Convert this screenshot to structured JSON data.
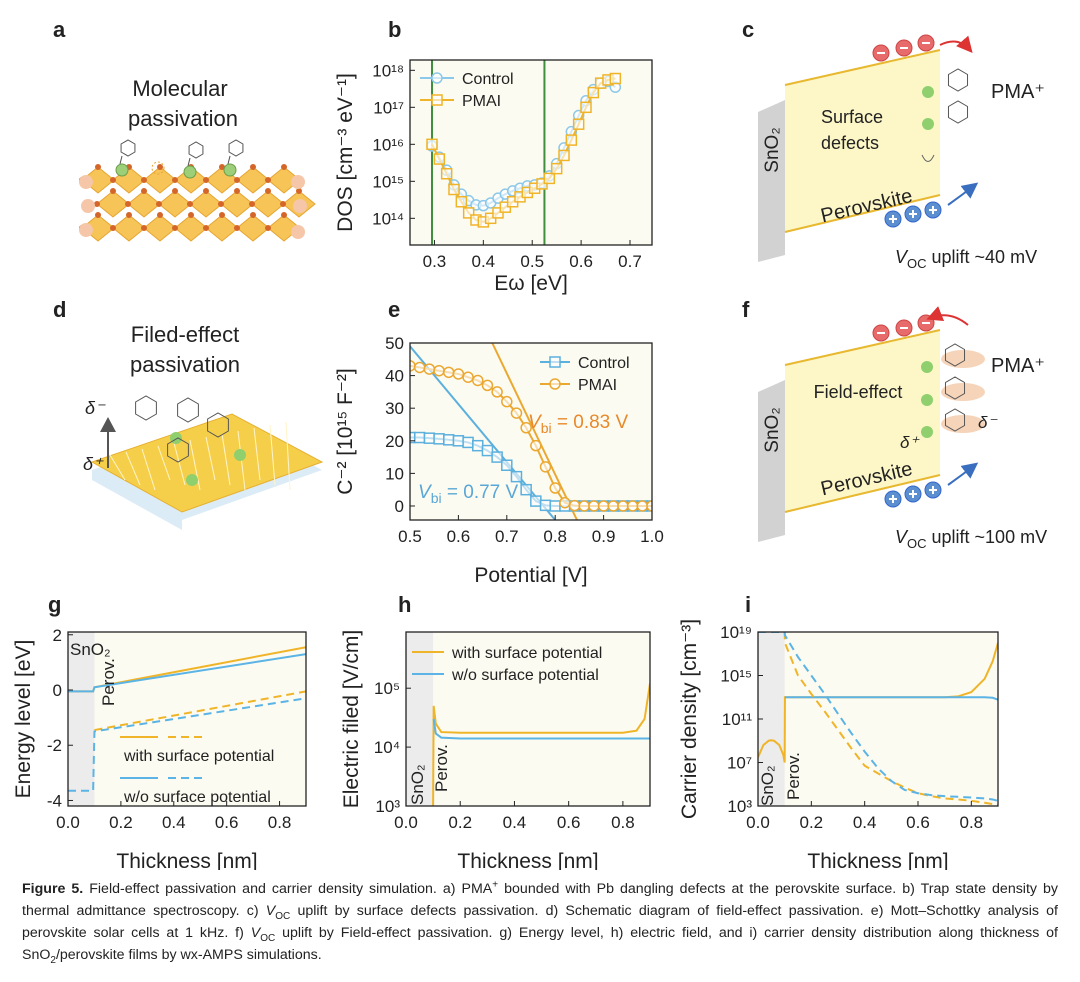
{
  "panel_labels": [
    "a",
    "b",
    "c",
    "d",
    "e",
    "f",
    "g",
    "h",
    "i"
  ],
  "schematics": {
    "a": {
      "line1": "Molecular",
      "line2": "passivation"
    },
    "c": {
      "label1": "Surface",
      "label2": "defects",
      "perovskite": "Perovskite",
      "sno2": "SnO₂",
      "pma": "PMA⁺",
      "voc": {
        "v": "V",
        "sub": "OC",
        "rest": " uplift ~40 mV"
      }
    },
    "d": {
      "line1": "Filed-effect",
      "line2": "passivation",
      "dminus": "δ⁻",
      "dplus": "δ⁺"
    },
    "f": {
      "label": "Field-effect",
      "perovskite": "Perovskite",
      "sno2": "SnO₂",
      "pma": "PMA⁺",
      "dplus": "δ⁺",
      "dminus": "δ⁻",
      "voc": {
        "v": "V",
        "sub": "OC",
        "rest": " uplift ~100 mV"
      }
    }
  },
  "chart_data": [
    {
      "type": "line",
      "xlabel": "Eω [eV]",
      "ylabel": "DOS [cm⁻³ eV⁻¹]",
      "background": "#fcfbf1",
      "xlim": [
        0.25,
        0.745
      ],
      "xticks": [
        0.3,
        0.4,
        0.5,
        0.6,
        0.7
      ],
      "ylog": true,
      "ylim": [
        19000000000000.0,
        1.9e+18
      ],
      "yticks": [
        {
          "value": 100000000000000.0,
          "label": "10¹⁴"
        },
        {
          "value": 1000000000000000.0,
          "label": "10¹⁵"
        },
        {
          "value": 1e+16,
          "label": "10¹⁶"
        },
        {
          "value": 1e+17,
          "label": "10¹⁷"
        },
        {
          "value": 1e+18,
          "label": "10¹⁸"
        }
      ],
      "vlines": [
        0.295,
        0.525
      ],
      "vline_color": "#3f8f3f",
      "legend": "upper left",
      "x": [
        0.295,
        0.31,
        0.325,
        0.34,
        0.355,
        0.37,
        0.385,
        0.4,
        0.415,
        0.43,
        0.445,
        0.46,
        0.475,
        0.49,
        0.505,
        0.52,
        0.535,
        0.55,
        0.565,
        0.58,
        0.595,
        0.61,
        0.625,
        0.64,
        0.655,
        0.67
      ],
      "series": [
        {
          "name": "Control",
          "color": "#8cc8ea",
          "marker": "circle",
          "values": [
            9000000000000000.0,
            4500000000000000.0,
            2000000000000000.0,
            800000000000000.0,
            450000000000000.0,
            300000000000000.0,
            230000000000000.0,
            220000000000000.0,
            260000000000000.0,
            350000000000000.0,
            450000000000000.0,
            550000000000000.0,
            650000000000000.0,
            750000000000000.0,
            800000000000000.0,
            900000000000000.0,
            1400000000000000.0,
            3000000000000000.0,
            8000000000000000.0,
            2.2e+16,
            6e+16,
            1.5e+17,
            3e+17,
            4.5e+17,
            5e+17,
            3.5e+17
          ]
        },
        {
          "name": "PMAI",
          "color": "#f0b429",
          "marker": "square",
          "values": [
            1e+16,
            4000000000000000.0,
            1600000000000000.0,
            600000000000000.0,
            280000000000000.0,
            140000000000000.0,
            90000000000000.0,
            80000000000000.0,
            100000000000000.0,
            140000000000000.0,
            200000000000000.0,
            280000000000000.0,
            380000000000000.0,
            500000000000000.0,
            650000000000000.0,
            850000000000000.0,
            1200000000000000.0,
            2200000000000000.0,
            5000000000000000.0,
            1.3e+16,
            3.5e+16,
            1e+17,
            2.5e+17,
            4.5e+17,
            5.5e+17,
            6e+17
          ]
        }
      ]
    },
    {
      "type": "line",
      "xlabel": "Potential [V]",
      "ylabel": "C⁻² [10¹⁵ F⁻²]",
      "background": "#fcfbf1",
      "xlim": [
        0.5,
        1.0
      ],
      "xticks": [
        0.5,
        0.6,
        0.7,
        0.8,
        0.9,
        {
          "value": 1.0,
          "label": "1.0"
        }
      ],
      "ylim": [
        -4.3,
        50
      ],
      "yticks": [
        0,
        10,
        20,
        30,
        40,
        50
      ],
      "legend": "upper right",
      "x": [
        0.5,
        0.52,
        0.54,
        0.56,
        0.58,
        0.6,
        0.62,
        0.64,
        0.66,
        0.68,
        0.7,
        0.72,
        0.74,
        0.76,
        0.78,
        0.8,
        0.82,
        0.84,
        0.86,
        0.88,
        0.9,
        0.92,
        0.94,
        0.96,
        0.98,
        1.0
      ],
      "series": [
        {
          "name": "Control",
          "color": "#5bb0dd",
          "marker": "square",
          "values": [
            21,
            21,
            20.8,
            20.6,
            20.3,
            20,
            19.5,
            18.5,
            17,
            15,
            12.5,
            9,
            5,
            1.5,
            0.2,
            0,
            0,
            0,
            0,
            0,
            0,
            0,
            0,
            0,
            0,
            0
          ]
        },
        {
          "name": "PMAI",
          "color": "#eba831",
          "marker": "circle",
          "values": [
            43,
            42.5,
            42,
            41.5,
            41,
            40.5,
            39.5,
            38.5,
            37,
            35,
            32,
            28.5,
            24,
            18.5,
            12,
            5.5,
            1,
            0.1,
            0,
            0,
            0,
            0,
            0,
            0,
            0,
            0
          ]
        }
      ],
      "fits": [
        {
          "color": "#5bb0dd",
          "x": [
            0.5,
            0.8
          ],
          "values": [
            49,
            -4.3
          ]
        },
        {
          "color": "#eba831",
          "x": [
            0.67,
            0.845
          ],
          "values": [
            50,
            -4.3
          ]
        }
      ],
      "annotations": [
        {
          "v": "V",
          "sub": "bi",
          "text": " = 0.83 V",
          "color": "#e8892b"
        },
        {
          "v": "V",
          "sub": "bi",
          "text": " = 0.77 V",
          "color": "#5aa7d6"
        }
      ]
    },
    {
      "type": "line",
      "xlabel": "Thickness [nm]",
      "ylabel": "Energy level [eV]",
      "background": "#fcfbf1",
      "xlim": [
        0,
        0.9
      ],
      "xticks": [
        {
          "value": 0,
          "label": "0.0"
        },
        0.2,
        0.4,
        0.6,
        0.8
      ],
      "ylim": [
        -4.2,
        2.1
      ],
      "yticks": [
        -4,
        -2,
        0,
        2
      ],
      "legend": "lower center",
      "shade_x": [
        0,
        0.1
      ],
      "shade_color": "#ececec",
      "annotations": [
        "SnO₂",
        "Perov."
      ],
      "x": [
        0,
        0.095,
        0.1,
        0.9
      ],
      "series": [
        {
          "name": "with surface potential",
          "color": "#f0b429",
          "values": [
            -0.05,
            -0.05,
            0.1,
            1.55
          ]
        },
        {
          "name": "w/o surface potential",
          "color": "#5bb4e5",
          "values": [
            -0.05,
            -0.05,
            0.1,
            1.3
          ]
        },
        {
          "color": "#f0b429",
          "dash": true,
          "values": [
            null,
            null,
            -1.45,
            -0.05
          ]
        },
        {
          "color": "#5bb4e5",
          "dash": true,
          "values": [
            -3.65,
            -3.65,
            -1.5,
            -0.3
          ]
        }
      ]
    },
    {
      "type": "line",
      "xlabel": "Thickness [nm]",
      "ylabel": "Electric filed [V/cm]",
      "background": "#fcfbf1",
      "xlim": [
        0,
        0.9
      ],
      "xticks": [
        {
          "value": 0,
          "label": "0.0"
        },
        0.2,
        0.4,
        0.6,
        0.8
      ],
      "ylog": true,
      "ylim": [
        1000.0,
        900000.0
      ],
      "yticks": [
        {
          "value": 1000.0,
          "label": "10³"
        },
        {
          "value": 10000.0,
          "label": "10⁴"
        },
        {
          "value": 100000.0,
          "label": "10⁵"
        }
      ],
      "legend": "upper right",
      "shade_x": [
        0,
        0.1
      ],
      "shade_color": "#ececec",
      "annotations": [
        "SnO₂",
        "Perov."
      ],
      "x": [
        0.1,
        0.102,
        0.11,
        0.13,
        0.2,
        0.5,
        0.8,
        0.85,
        0.88,
        0.9
      ],
      "series": [
        {
          "name": "with surface potential",
          "color": "#f0b429",
          "values": [
            1000.0,
            50000.0,
            25000.0,
            18000.0,
            17500.0,
            17500.0,
            17500.0,
            19000.0,
            30000.0,
            120000.0
          ]
        },
        {
          "name": "w/o surface potential",
          "color": "#5bb4e5",
          "values": [
            null,
            30000.0,
            17000.0,
            14500.0,
            14000.0,
            14000.0,
            14000.0,
            14000.0,
            14000.0,
            14000.0
          ]
        }
      ]
    },
    {
      "type": "line",
      "xlabel": "Thickness [nm]",
      "ylabel": "Carrier density [cm⁻³]",
      "background": "#fcfbf1",
      "xlim": [
        0,
        0.9
      ],
      "xticks": [
        {
          "value": 0,
          "label": "0.0"
        },
        0.2,
        0.4,
        0.6,
        0.8
      ],
      "ylog": true,
      "ylim": [
        1000.0,
        1e+19
      ],
      "yticks": [
        {
          "value": 1000.0,
          "label": "10³"
        },
        {
          "value": 10000000.0,
          "label": "10⁷"
        },
        {
          "value": 100000000000.0,
          "label": "10¹¹"
        },
        {
          "value": 1000000000000000.0,
          "label": "10¹⁵"
        },
        {
          "value": 1e+19,
          "label": "10¹⁹"
        }
      ],
      "shade_x": [
        0,
        0.1
      ],
      "shade_color": "#ececec",
      "annotations": [
        "SnO₂",
        "Perov."
      ],
      "x": [
        0,
        0.02,
        0.04,
        0.05,
        0.06,
        0.08,
        0.095,
        0.1,
        0.101,
        0.15,
        0.2,
        0.25,
        0.3,
        0.35,
        0.4,
        0.45,
        0.5,
        0.55,
        0.6,
        0.65,
        0.7,
        0.75,
        0.8,
        0.85,
        0.88,
        0.9
      ],
      "series": [
        {
          "color": "#f0b429",
          "values": [
            30000000.0,
            400000000.0,
            1000000000.0,
            1100000000.0,
            1000000000.0,
            400000000.0,
            50000000.0,
            10000000.0,
            10000000000000.0,
            10000000000000.0,
            10000000000000.0,
            10000000000000.0,
            10000000000000.0,
            10000000000000.0,
            10000000000000.0,
            10000000000000.0,
            10000000000000.0,
            10000000000000.0,
            10000000000000.0,
            10000000000000.0,
            10000000000000.0,
            12000000000000.0,
            30000000000000.0,
            500000000000000.0,
            2e+16,
            1e+18
          ]
        },
        {
          "color": "#5bb4e5",
          "values": [
            null,
            null,
            null,
            null,
            null,
            null,
            null,
            null,
            10000000000000.0,
            10000000000000.0,
            10000000000000.0,
            10000000000000.0,
            10000000000000.0,
            10000000000000.0,
            10000000000000.0,
            10000000000000.0,
            10000000000000.0,
            10000000000000.0,
            10000000000000.0,
            10000000000000.0,
            10000000000000.0,
            10000000000000.0,
            10000000000000.0,
            10000000000000.0,
            9000000000000.0,
            6000000000000.0
          ]
        },
        {
          "color": "#f0b429",
          "dash": true,
          "values": [
            1e+19,
            1e+19,
            1e+19,
            1e+19,
            1e+19,
            1e+19,
            1e+19,
            1e+19,
            1e+18,
            1000000000000000.0,
            20000000000000.0,
            500000000000.0,
            10000000000.0,
            200000000.0,
            5000000.0,
            1000000.0,
            200000.0,
            50000.0,
            15000.0,
            8000.0,
            5000.0,
            4000.0,
            3000.0,
            2000.0,
            1500.0,
            1100.0
          ]
        },
        {
          "color": "#5bb4e5",
          "dash": true,
          "values": [
            1e+19,
            1e+19,
            1e+19,
            1e+19,
            1e+19,
            1e+19,
            1e+19,
            1e+19,
            5e+18,
            5e+16,
            1000000000000000.0,
            20000000000000.0,
            300000000000.0,
            5000000000.0,
            100000000.0,
            3000000.0,
            200000.0,
            30000.0,
            15000.0,
            10000.0,
            8000.0,
            7000.0,
            6000.0,
            5000.0,
            4000.0,
            3000.0
          ]
        }
      ]
    }
  ],
  "caption": [
    "Figure 5.",
    " Field-effect passivation and carrier density simulation. a) PMA",
    "+",
    " bounded with Pb dangling defects at the perovskite surface. b) Trap state density by thermal admittance spectroscopy. c) ",
    "V",
    "OC",
    " uplift by surface defects passivation. d) Schematic diagram of field-effect passivation. e) Mott–Schottky analysis of perovskite solar cells at 1 kHz. f) ",
    "V",
    "OC",
    " uplift by Field-effect passivation. g) Energy level, h) electric field, and i) carrier density distribution along thickness of SnO",
    "2",
    "/perovskite films by wx-AMPS simulations."
  ]
}
